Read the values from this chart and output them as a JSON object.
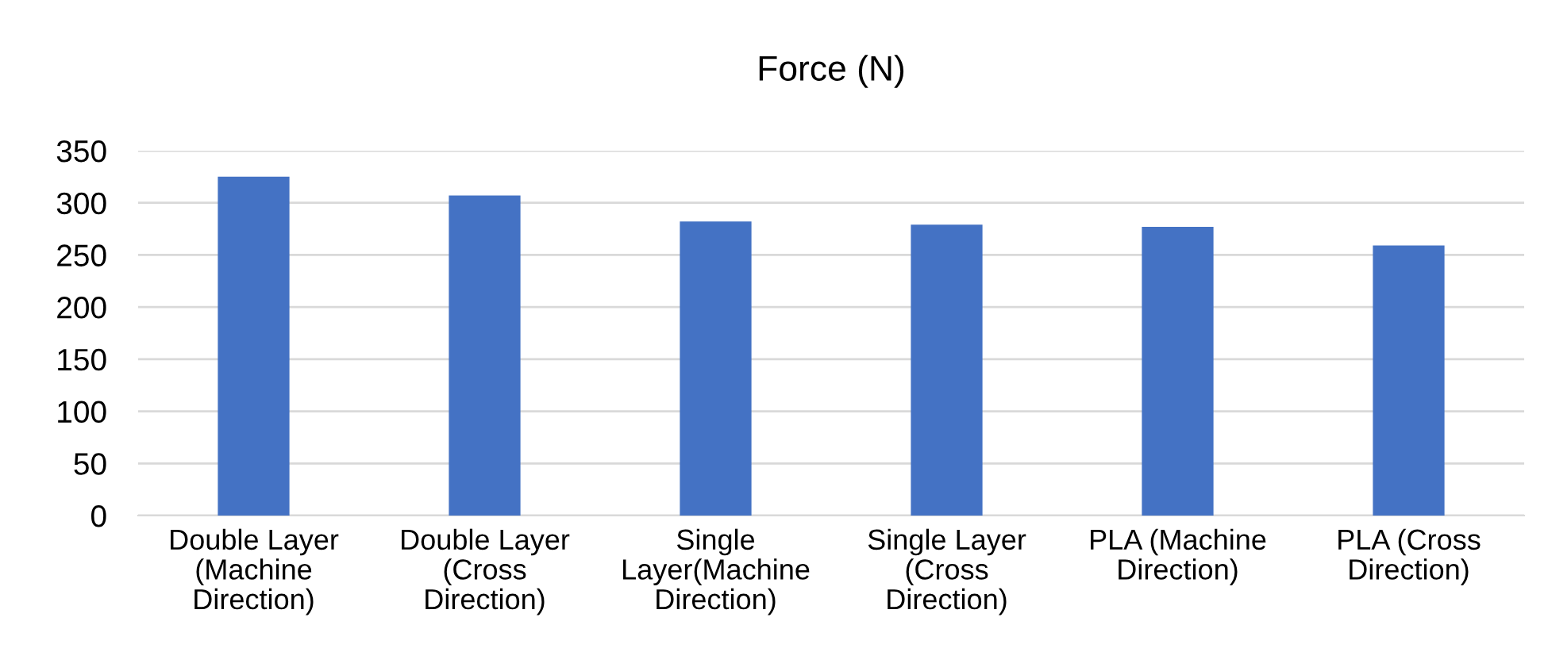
{
  "chart_data": {
    "type": "bar",
    "title": "Force (N)",
    "categories": [
      "Double Layer\n(Machine\nDirection)",
      "Double Layer\n(Cross\nDirection)",
      "Single\nLayer(Machine\nDirection)",
      "Single Layer\n(Cross\nDirection)",
      "PLA (Machine\nDirection)",
      "PLA (Cross\nDirection)"
    ],
    "values": [
      325,
      307,
      282,
      279,
      277,
      259
    ],
    "color": "#4472c4",
    "ylim": [
      0,
      350
    ],
    "yticks": [
      0,
      50,
      100,
      150,
      200,
      250,
      300,
      350
    ],
    "grid": "y"
  }
}
